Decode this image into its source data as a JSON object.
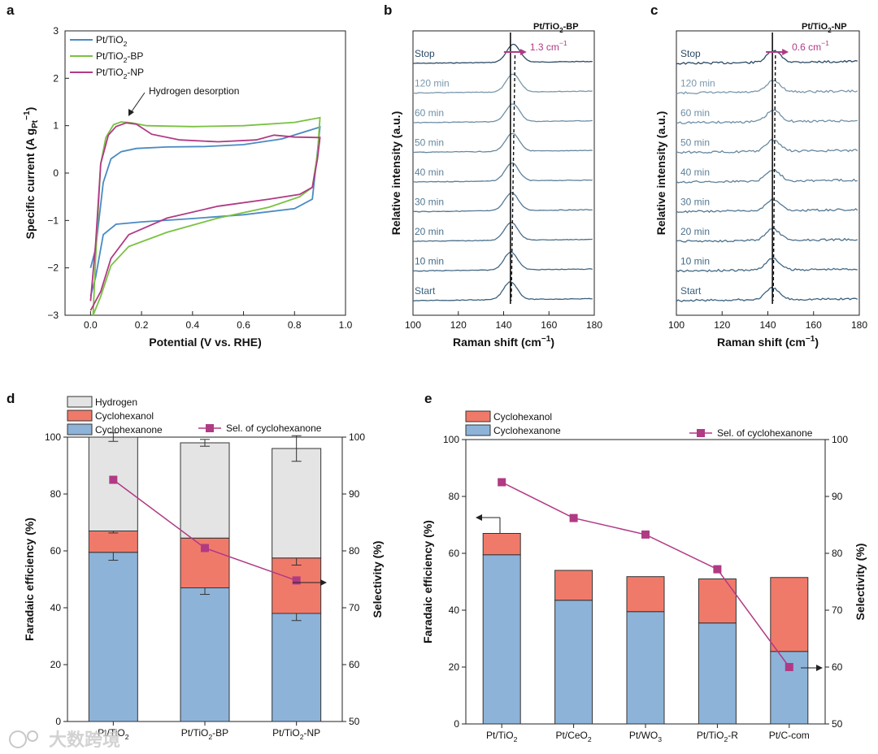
{
  "figure": {
    "watermark": "大数跨境",
    "panel_letters": [
      "a",
      "b",
      "c",
      "d",
      "e"
    ]
  },
  "chart_data": [
    {
      "id": "a",
      "type": "line",
      "xlabel": "Potential (V vs. RHE)",
      "ylabel": "Specific current (A gPt−1)",
      "xlim": [
        -0.1,
        1.0
      ],
      "ylim": [
        -3,
        3
      ],
      "xticks": [
        0.0,
        0.2,
        0.4,
        0.6,
        0.8,
        1.0
      ],
      "yticks": [
        -3,
        -2,
        -1,
        0,
        1,
        2,
        3
      ],
      "annotation": "Hydrogen desorption",
      "legend_position": "top-left",
      "series": [
        {
          "name": "Pt/TiO2",
          "color": "#4a8ac4",
          "forward": [
            [
              0.0,
              -2.0
            ],
            [
              0.02,
              -1.6
            ],
            [
              0.05,
              -0.2
            ],
            [
              0.08,
              0.3
            ],
            [
              0.12,
              0.45
            ],
            [
              0.18,
              0.52
            ],
            [
              0.3,
              0.55
            ],
            [
              0.45,
              0.56
            ],
            [
              0.6,
              0.6
            ],
            [
              0.75,
              0.72
            ],
            [
              0.9,
              0.97
            ]
          ],
          "backward": [
            [
              0.9,
              0.97
            ],
            [
              0.89,
              0.45
            ],
            [
              0.87,
              -0.55
            ],
            [
              0.8,
              -0.75
            ],
            [
              0.6,
              -0.88
            ],
            [
              0.4,
              -0.96
            ],
            [
              0.2,
              -1.03
            ],
            [
              0.1,
              -1.08
            ],
            [
              0.05,
              -1.3
            ],
            [
              0.02,
              -2.2
            ],
            [
              0.0,
              -2.6
            ]
          ]
        },
        {
          "name": "Pt/TiO2-BP",
          "color": "#7ac142",
          "forward": [
            [
              0.01,
              -3.0
            ],
            [
              0.02,
              -1.8
            ],
            [
              0.04,
              0.2
            ],
            [
              0.06,
              0.75
            ],
            [
              0.09,
              1.02
            ],
            [
              0.12,
              1.08
            ],
            [
              0.16,
              1.06
            ],
            [
              0.22,
              1.0
            ],
            [
              0.4,
              0.98
            ],
            [
              0.6,
              1.0
            ],
            [
              0.8,
              1.07
            ],
            [
              0.9,
              1.17
            ]
          ],
          "backward": [
            [
              0.9,
              1.17
            ],
            [
              0.89,
              0.4
            ],
            [
              0.87,
              -0.3
            ],
            [
              0.82,
              -0.5
            ],
            [
              0.7,
              -0.72
            ],
            [
              0.5,
              -0.95
            ],
            [
              0.3,
              -1.25
            ],
            [
              0.15,
              -1.55
            ],
            [
              0.08,
              -1.95
            ],
            [
              0.04,
              -2.6
            ],
            [
              0.01,
              -3.0
            ]
          ]
        },
        {
          "name": "Pt/TiO2-NP",
          "color": "#b03a84",
          "forward": [
            [
              0.0,
              -2.7
            ],
            [
              0.02,
              -1.5
            ],
            [
              0.04,
              0.2
            ],
            [
              0.07,
              0.8
            ],
            [
              0.1,
              0.98
            ],
            [
              0.14,
              1.06
            ],
            [
              0.18,
              1.03
            ],
            [
              0.24,
              0.82
            ],
            [
              0.35,
              0.7
            ],
            [
              0.5,
              0.66
            ],
            [
              0.65,
              0.7
            ],
            [
              0.72,
              0.8
            ],
            [
              0.8,
              0.76
            ],
            [
              0.9,
              0.75
            ]
          ],
          "backward": [
            [
              0.9,
              0.75
            ],
            [
              0.89,
              0.3
            ],
            [
              0.87,
              -0.3
            ],
            [
              0.82,
              -0.45
            ],
            [
              0.7,
              -0.55
            ],
            [
              0.5,
              -0.7
            ],
            [
              0.3,
              -0.95
            ],
            [
              0.15,
              -1.3
            ],
            [
              0.08,
              -1.8
            ],
            [
              0.04,
              -2.5
            ],
            [
              0.0,
              -2.9
            ]
          ]
        }
      ]
    },
    {
      "id": "b",
      "type": "line",
      "title": "Pt/TiO2-BP",
      "xlabel": "Raman shift (cm−1)",
      "ylabel": "Relative intensity (a.u.)",
      "xlim": [
        100,
        180
      ],
      "xticks": [
        100,
        120,
        140,
        160,
        180
      ],
      "peak_start": 143,
      "peak_stop": 144.3,
      "shift_annotation": "1.3 cm−1",
      "trace_labels": [
        "Stop",
        "120 min",
        "60 min",
        "50 min",
        "40 min",
        "30 min",
        "20 min",
        "10 min",
        "Start"
      ]
    },
    {
      "id": "c",
      "type": "line",
      "title": "Pt/TiO2-NP",
      "xlabel": "Raman shift (cm−1)",
      "ylabel": "Relative intensity (a.u.)",
      "xlim": [
        100,
        180
      ],
      "xticks": [
        100,
        120,
        140,
        160,
        180
      ],
      "peak_start": 142,
      "peak_stop": 142.6,
      "shift_annotation": "0.6 cm−1",
      "trace_labels": [
        "Stop",
        "120 min",
        "60 min",
        "50 min",
        "40 min",
        "30 min",
        "20 min",
        "10 min",
        "Start"
      ]
    },
    {
      "id": "d",
      "type": "bar",
      "categories": [
        "Pt/TiO2",
        "Pt/TiO2-BP",
        "Pt/TiO2-NP"
      ],
      "ylabel": "Faradaic efficiency (%)",
      "ylabel_right": "Selectivity (%)",
      "ylim": [
        0,
        100
      ],
      "ylim_right": [
        50,
        100
      ],
      "yticks": [
        0,
        20,
        40,
        60,
        80,
        100
      ],
      "yticks_right": [
        50,
        60,
        70,
        80,
        90,
        100
      ],
      "series": [
        {
          "name": "Cyclohexanone",
          "color": "#8db3d9",
          "values": [
            59.5,
            47,
            38
          ],
          "errors": [
            2.8,
            2.3,
            2.5
          ]
        },
        {
          "name": "Cyclohexanol",
          "color": "#f07a6a",
          "values": [
            7.5,
            17.5,
            19.5
          ],
          "errors": [
            0.7,
            0,
            2.5
          ]
        },
        {
          "name": "Hydrogen",
          "color": "#e4e4e4",
          "values": [
            33,
            33.5,
            38.5
          ],
          "errors": [
            1.5,
            1.2,
            4.5
          ]
        }
      ],
      "line_series": {
        "name": "Sel. of cyclohexanone",
        "color": "#b03a84",
        "values": [
          92.5,
          80.5,
          74.8
        ]
      }
    },
    {
      "id": "e",
      "type": "bar",
      "categories": [
        "Pt/TiO2",
        "Pt/CeO2",
        "Pt/WO3",
        "Pt/TiO2-R",
        "Pt/C-com"
      ],
      "ylabel": "Faradaic efficiency (%)",
      "ylabel_right": "Selectivity (%)",
      "ylim": [
        0,
        100
      ],
      "ylim_right": [
        50,
        100
      ],
      "yticks": [
        0,
        20,
        40,
        60,
        80,
        100
      ],
      "yticks_right": [
        50,
        60,
        70,
        80,
        90,
        100
      ],
      "series": [
        {
          "name": "Cyclohexanone",
          "color": "#8db3d9",
          "values": [
            59.5,
            43.5,
            39.5,
            35.5,
            25.5
          ]
        },
        {
          "name": "Cyclohexanol",
          "color": "#f07a6a",
          "values": [
            7.5,
            10.5,
            12.3,
            15.5,
            26
          ]
        }
      ],
      "line_series": {
        "name": "Sel. of cyclohexanone",
        "color": "#b03a84",
        "values": [
          92.5,
          86.2,
          83.3,
          77.2,
          60
        ]
      }
    }
  ]
}
